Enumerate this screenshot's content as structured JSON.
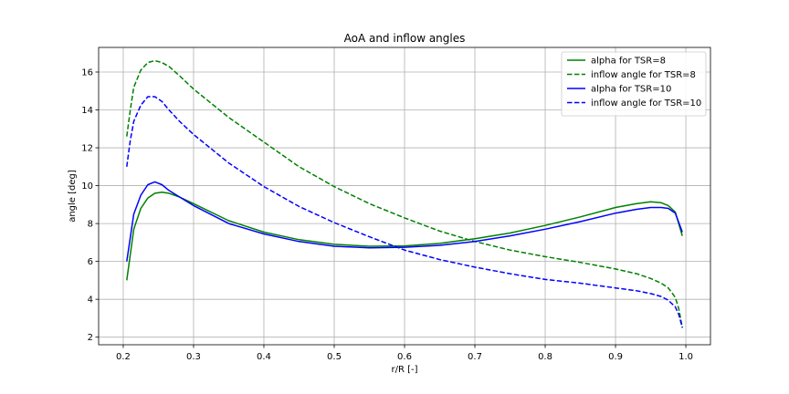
{
  "chart_data": {
    "type": "line",
    "title": "AoA and inflow angles",
    "xlabel": "r/R [-]",
    "ylabel": "angle [deg]",
    "xlim": [
      0.165,
      1.035
    ],
    "ylim": [
      1.6,
      17.3
    ],
    "xticks": [
      0.2,
      0.3,
      0.4,
      0.5,
      0.6,
      0.7,
      0.8,
      0.9,
      1.0
    ],
    "xtick_labels": [
      "0.2",
      "0.3",
      "0.4",
      "0.5",
      "0.6",
      "0.7",
      "0.8",
      "0.9",
      "1.0"
    ],
    "yticks": [
      2,
      4,
      6,
      8,
      10,
      12,
      14,
      16
    ],
    "ytick_labels": [
      "2",
      "4",
      "6",
      "8",
      "10",
      "12",
      "14",
      "16"
    ],
    "grid": true,
    "legend_position": "top-right",
    "series": [
      {
        "name": "alpha for TSR=8",
        "color": "#008000",
        "style": "solid",
        "x": [
          0.205,
          0.215,
          0.225,
          0.235,
          0.245,
          0.255,
          0.265,
          0.28,
          0.3,
          0.35,
          0.4,
          0.45,
          0.5,
          0.55,
          0.6,
          0.65,
          0.7,
          0.75,
          0.8,
          0.85,
          0.9,
          0.93,
          0.95,
          0.965,
          0.975,
          0.985,
          0.995
        ],
        "y": [
          5.0,
          7.7,
          8.8,
          9.35,
          9.6,
          9.65,
          9.6,
          9.4,
          9.05,
          8.15,
          7.55,
          7.15,
          6.9,
          6.8,
          6.82,
          6.95,
          7.2,
          7.5,
          7.9,
          8.35,
          8.85,
          9.05,
          9.15,
          9.1,
          8.95,
          8.6,
          7.35
        ]
      },
      {
        "name": "inflow angle for TSR=8",
        "color": "#008000",
        "style": "dashed",
        "x": [
          0.205,
          0.21,
          0.215,
          0.225,
          0.235,
          0.245,
          0.255,
          0.265,
          0.28,
          0.3,
          0.35,
          0.4,
          0.45,
          0.5,
          0.55,
          0.6,
          0.65,
          0.7,
          0.75,
          0.8,
          0.85,
          0.9,
          0.93,
          0.95,
          0.965,
          0.975,
          0.985,
          0.99,
          0.995
        ],
        "y": [
          12.6,
          14.0,
          15.2,
          16.1,
          16.5,
          16.6,
          16.5,
          16.3,
          15.8,
          15.1,
          13.6,
          12.3,
          11.0,
          9.95,
          9.05,
          8.3,
          7.6,
          7.05,
          6.6,
          6.25,
          5.95,
          5.6,
          5.35,
          5.1,
          4.85,
          4.6,
          4.1,
          3.5,
          2.5
        ]
      },
      {
        "name": "alpha for TSR=10",
        "color": "#0000ff",
        "style": "solid",
        "x": [
          0.205,
          0.215,
          0.225,
          0.235,
          0.245,
          0.255,
          0.265,
          0.28,
          0.3,
          0.35,
          0.4,
          0.45,
          0.5,
          0.55,
          0.6,
          0.65,
          0.7,
          0.75,
          0.8,
          0.85,
          0.9,
          0.93,
          0.95,
          0.965,
          0.975,
          0.985,
          0.995
        ],
        "y": [
          6.0,
          8.5,
          9.5,
          10.05,
          10.2,
          10.05,
          9.75,
          9.4,
          8.95,
          8.0,
          7.45,
          7.05,
          6.8,
          6.72,
          6.75,
          6.85,
          7.05,
          7.35,
          7.7,
          8.1,
          8.55,
          8.75,
          8.85,
          8.85,
          8.8,
          8.55,
          7.55
        ]
      },
      {
        "name": "inflow angle for TSR=10",
        "color": "#0000ff",
        "style": "dashed",
        "x": [
          0.205,
          0.21,
          0.215,
          0.225,
          0.235,
          0.245,
          0.255,
          0.265,
          0.28,
          0.3,
          0.35,
          0.4,
          0.45,
          0.5,
          0.55,
          0.6,
          0.65,
          0.7,
          0.75,
          0.8,
          0.85,
          0.9,
          0.93,
          0.95,
          0.965,
          0.975,
          0.985,
          0.99,
          0.995
        ],
        "y": [
          11.0,
          12.4,
          13.4,
          14.25,
          14.7,
          14.7,
          14.45,
          14.0,
          13.4,
          12.7,
          11.2,
          9.95,
          8.9,
          8.05,
          7.3,
          6.6,
          6.1,
          5.7,
          5.35,
          5.05,
          4.85,
          4.6,
          4.45,
          4.3,
          4.15,
          3.95,
          3.6,
          3.2,
          2.5
        ]
      }
    ]
  }
}
